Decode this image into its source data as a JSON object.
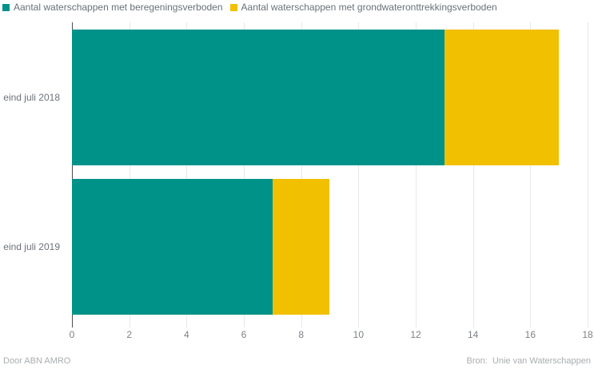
{
  "legend": {
    "items": [
      {
        "label": "Aantal waterschappen met beregeningsverboden",
        "color": "#009289"
      },
      {
        "label": "Aantal waterschappen met grondwateronttrekkingsverboden",
        "color": "#f1c000"
      }
    ]
  },
  "footer": {
    "left": "Door ABN AMRO",
    "right": "Bron:  Unie van Waterschappen"
  },
  "colors": {
    "series_teal": "#009289",
    "series_yellow": "#f1c000",
    "axis_line": "#4d4d4d",
    "grid_line": "#e8e8e8",
    "label_text": "#6d7278",
    "footer_text": "#a9adb0"
  },
  "chart_data": {
    "type": "bar",
    "orientation": "horizontal",
    "stacked": true,
    "title": "",
    "xlabel": "",
    "ylabel": "",
    "categories": [
      "eind juli 2018",
      "eind juli 2019"
    ],
    "series": [
      {
        "name": "Aantal waterschappen met beregeningsverboden",
        "color": "#009289",
        "values": [
          13,
          7
        ]
      },
      {
        "name": "Aantal waterschappen met grondwateronttrekkingsverboden",
        "color": "#f1c000",
        "values": [
          4,
          2
        ]
      }
    ],
    "stacked_totals": [
      17,
      9
    ],
    "xlim": [
      0,
      18
    ],
    "xticks": [
      0,
      2,
      4,
      6,
      8,
      10,
      12,
      14,
      16,
      18
    ],
    "grid": "vertical",
    "legend_position": "top"
  }
}
